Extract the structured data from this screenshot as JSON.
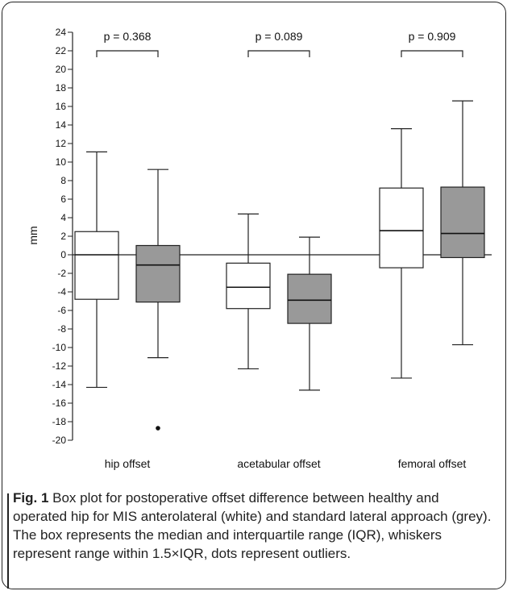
{
  "chart_data": {
    "type": "box",
    "ylabel": "mm",
    "ylim": [
      -20,
      24
    ],
    "yticks": [
      24,
      22,
      20,
      18,
      16,
      14,
      12,
      10,
      8,
      6,
      4,
      2,
      0,
      -2,
      -4,
      -6,
      -8,
      -10,
      -12,
      -14,
      -16,
      -18,
      -20
    ],
    "categories": [
      "hip offset",
      "acetabular offset",
      "femoral offset"
    ],
    "p_values": [
      "p = 0.368",
      "p = 0.089",
      "p = 0.909"
    ],
    "series_colors": {
      "MIS anterolateral": "#ffffff",
      "standard lateral": "#999999"
    },
    "groups": [
      {
        "category": "hip offset",
        "boxes": [
          {
            "approach": "MIS anterolateral",
            "whisker_low": -14.3,
            "q1": -4.8,
            "median": 0.0,
            "q3": 2.5,
            "whisker_high": 11.1,
            "outliers": []
          },
          {
            "approach": "standard lateral",
            "whisker_low": -11.1,
            "q1": -5.1,
            "median": -1.1,
            "q3": 1.0,
            "whisker_high": 9.2,
            "outliers": [
              -18.7
            ]
          }
        ]
      },
      {
        "category": "acetabular offset",
        "boxes": [
          {
            "approach": "MIS anterolateral",
            "whisker_low": -12.3,
            "q1": -5.8,
            "median": -3.5,
            "q3": -0.9,
            "whisker_high": 4.4,
            "outliers": []
          },
          {
            "approach": "standard lateral",
            "whisker_low": -14.6,
            "q1": -7.4,
            "median": -4.9,
            "q3": -2.1,
            "whisker_high": 1.9,
            "outliers": []
          }
        ]
      },
      {
        "category": "femoral offset",
        "boxes": [
          {
            "approach": "MIS anterolateral",
            "whisker_low": -13.3,
            "q1": -1.4,
            "median": 2.6,
            "q3": 7.2,
            "whisker_high": 13.6,
            "outliers": []
          },
          {
            "approach": "standard lateral",
            "whisker_low": -9.7,
            "q1": -0.3,
            "median": 2.3,
            "q3": 7.3,
            "whisker_high": 16.6,
            "outliers": []
          }
        ]
      }
    ]
  },
  "caption": {
    "label": "Fig. 1",
    "text": " Box plot for postoperative offset difference between healthy and operated hip for MIS anterolateral (white) and standard lateral approach (grey). The box represents the median and interquartile range (IQR), whiskers represent range within 1.5×IQR, dots represent outliers."
  }
}
